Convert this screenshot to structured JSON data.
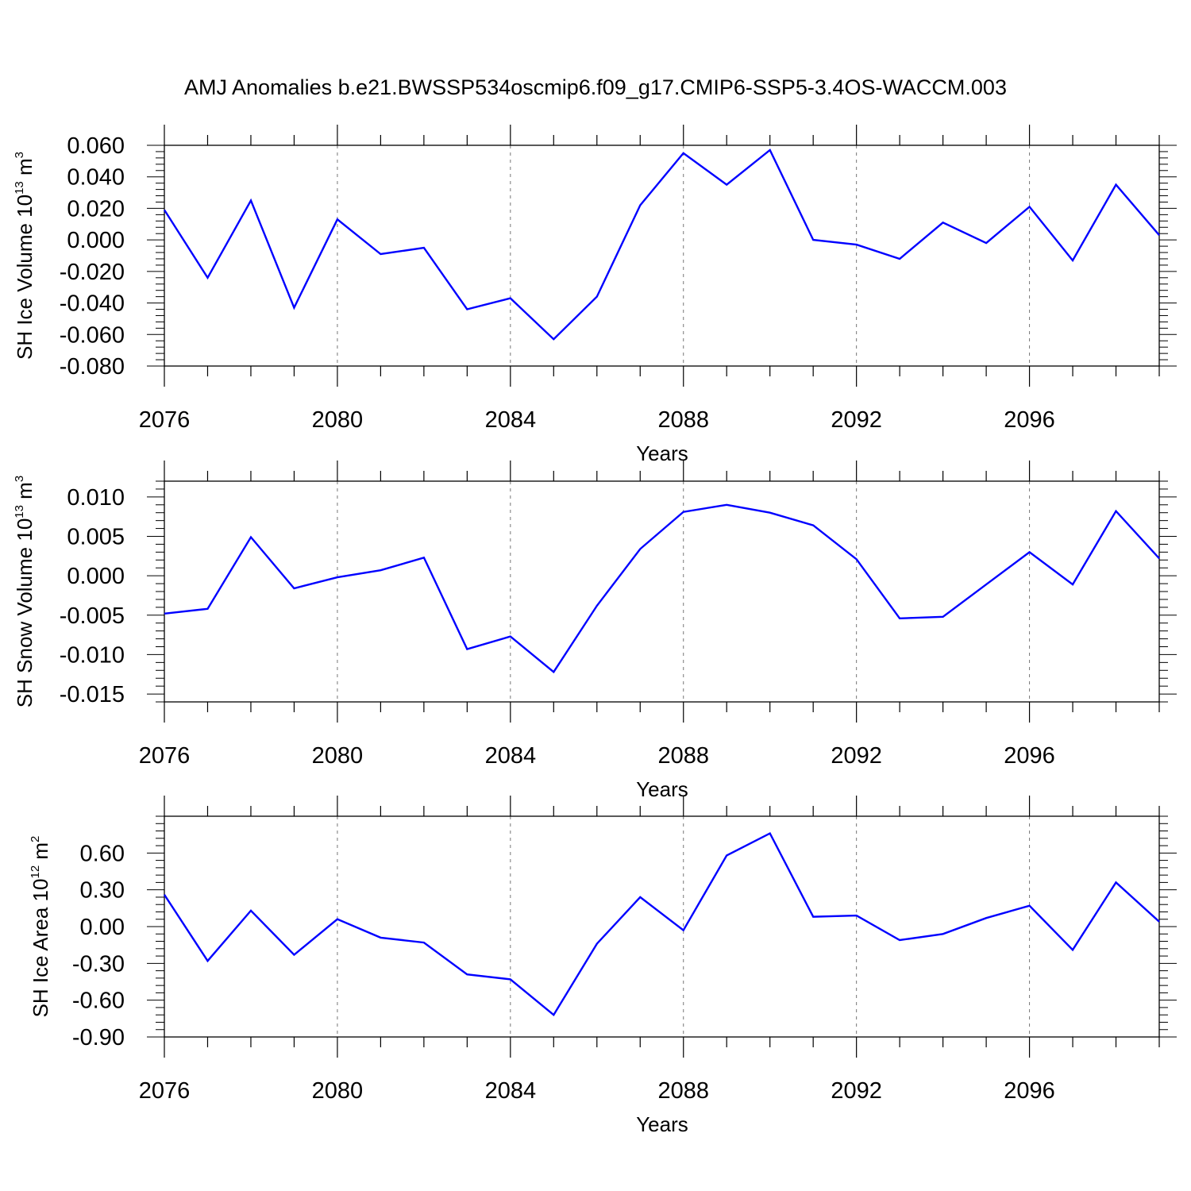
{
  "title": "AMJ Anomalies b.e21.BWSSP534oscmip6.f09_g17.CMIP6-SSP5-3.4OS-WACCM.003",
  "chart_data": [
    {
      "type": "line",
      "ylabel": {
        "text": "SH Ice Volume 10",
        "exponent": "13",
        "unit": "m",
        "unit_exponent": "3"
      },
      "xlabel": "Years",
      "xlim": [
        2076,
        2099
      ],
      "ylim": [
        -0.08,
        0.06
      ],
      "x_ticks": [
        2076,
        2080,
        2084,
        2088,
        2092,
        2096
      ],
      "x_tick_labels": [
        "2076",
        "2080",
        "2084",
        "2088",
        "2092",
        "2096"
      ],
      "y_ticks": [
        -0.08,
        -0.06,
        -0.04,
        -0.02,
        0.0,
        0.02,
        0.04,
        0.06
      ],
      "y_tick_labels": [
        "-0.080",
        "-0.060",
        "-0.040",
        "-0.020",
        "0.000",
        "0.020",
        "0.040",
        "0.060"
      ],
      "grid": "vertical dashed at major x ticks",
      "series_color": "#0000ff",
      "x": [
        2076,
        2077,
        2078,
        2079,
        2080,
        2081,
        2082,
        2083,
        2084,
        2085,
        2086,
        2087,
        2088,
        2089,
        2090,
        2091,
        2092,
        2093,
        2094,
        2095,
        2096,
        2097,
        2098,
        2099
      ],
      "values": [
        0.019,
        -0.024,
        0.025,
        -0.043,
        0.013,
        -0.009,
        -0.005,
        -0.044,
        -0.037,
        -0.063,
        -0.036,
        0.022,
        0.055,
        0.035,
        0.057,
        0.0,
        -0.003,
        -0.012,
        0.011,
        -0.002,
        0.021,
        -0.013,
        0.035,
        0.003
      ]
    },
    {
      "type": "line",
      "ylabel": {
        "text": "SH Snow Volume 10",
        "exponent": "13",
        "unit": "m",
        "unit_exponent": "3"
      },
      "xlabel": "Years",
      "xlim": [
        2076,
        2099
      ],
      "ylim": [
        -0.016,
        0.012
      ],
      "x_ticks": [
        2076,
        2080,
        2084,
        2088,
        2092,
        2096
      ],
      "x_tick_labels": [
        "2076",
        "2080",
        "2084",
        "2088",
        "2092",
        "2096"
      ],
      "y_ticks": [
        -0.015,
        -0.01,
        -0.005,
        0.0,
        0.005,
        0.01
      ],
      "y_tick_labels": [
        "-0.015",
        "-0.010",
        "-0.005",
        "0.000",
        "0.005",
        "0.010"
      ],
      "grid": "vertical dashed at major x ticks",
      "series_color": "#0000ff",
      "x": [
        2076,
        2077,
        2078,
        2079,
        2080,
        2081,
        2082,
        2083,
        2084,
        2085,
        2086,
        2087,
        2088,
        2089,
        2090,
        2091,
        2092,
        2093,
        2094,
        2095,
        2096,
        2097,
        2098,
        2099
      ],
      "values": [
        -0.0048,
        -0.0042,
        0.0049,
        -0.0016,
        -0.0002,
        0.0007,
        0.0023,
        -0.0093,
        -0.0077,
        -0.0122,
        -0.0038,
        0.0034,
        0.0081,
        0.009,
        0.008,
        0.0064,
        0.0021,
        -0.0054,
        -0.0052,
        -0.0011,
        0.003,
        -0.0011,
        0.0082,
        0.0022
      ]
    },
    {
      "type": "line",
      "ylabel": {
        "text": "SH Ice Area 10",
        "exponent": "12",
        "unit": "m",
        "unit_exponent": "2"
      },
      "xlabel": "Years",
      "xlim": [
        2076,
        2099
      ],
      "ylim": [
        -0.9,
        0.9
      ],
      "x_ticks": [
        2076,
        2080,
        2084,
        2088,
        2092,
        2096
      ],
      "x_tick_labels": [
        "2076",
        "2080",
        "2084",
        "2088",
        "2092",
        "2096"
      ],
      "y_ticks": [
        -0.9,
        -0.6,
        -0.3,
        0.0,
        0.3,
        0.6
      ],
      "y_tick_labels": [
        "-0.90",
        "-0.60",
        "-0.30",
        "0.00",
        "0.30",
        "0.60"
      ],
      "grid": "vertical dashed at major x ticks",
      "series_color": "#0000ff",
      "x": [
        2076,
        2077,
        2078,
        2079,
        2080,
        2081,
        2082,
        2083,
        2084,
        2085,
        2086,
        2087,
        2088,
        2089,
        2090,
        2091,
        2092,
        2093,
        2094,
        2095,
        2096,
        2097,
        2098,
        2099
      ],
      "values": [
        0.26,
        -0.28,
        0.13,
        -0.23,
        0.06,
        -0.09,
        -0.13,
        -0.39,
        -0.43,
        -0.72,
        -0.14,
        0.24,
        -0.03,
        0.58,
        0.76,
        0.08,
        0.09,
        -0.11,
        -0.06,
        0.07,
        0.17,
        -0.19,
        0.36,
        0.04
      ]
    }
  ]
}
